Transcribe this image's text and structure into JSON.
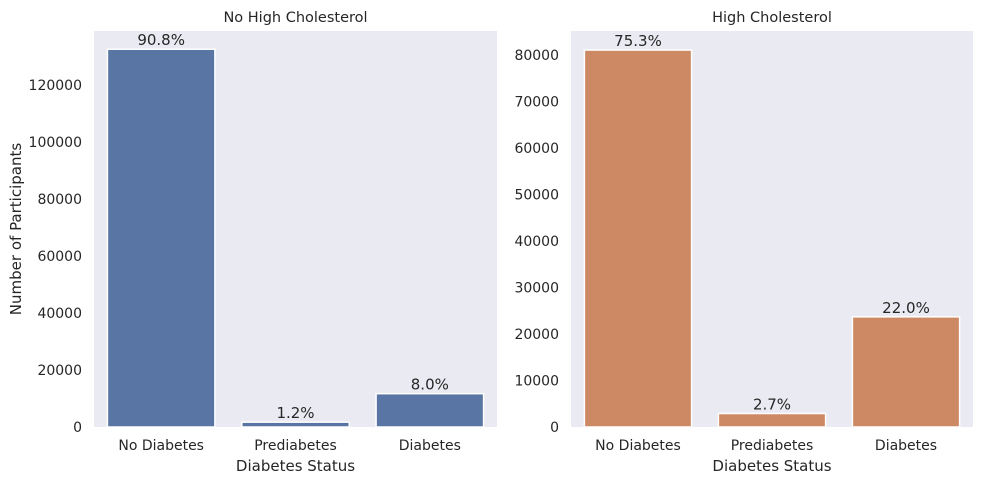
{
  "chart_data": [
    {
      "type": "bar",
      "title": "No High Cholesterol",
      "xlabel": "Diabetes Status",
      "ylabel": "Number of Participants",
      "categories": [
        "No Diabetes",
        "Prediabetes",
        "Diabetes"
      ],
      "values": [
        132600,
        1700,
        11700
      ],
      "data_labels": [
        "90.8%",
        "1.2%",
        "8.0%"
      ],
      "ylim": [
        0,
        139000
      ],
      "yticks": [
        0,
        20000,
        40000,
        60000,
        80000,
        100000,
        120000
      ],
      "color": "#5975a4",
      "grid": false
    },
    {
      "type": "bar",
      "title": "High Cholesterol",
      "xlabel": "Diabetes Status",
      "ylabel": "",
      "categories": [
        "No Diabetes",
        "Prediabetes",
        "Diabetes"
      ],
      "values": [
        81100,
        2900,
        23700
      ],
      "data_labels": [
        "75.3%",
        "2.7%",
        "22.0%"
      ],
      "ylim": [
        0,
        85200
      ],
      "yticks": [
        0,
        10000,
        20000,
        30000,
        40000,
        50000,
        60000,
        70000,
        80000
      ],
      "color": "#cc8963",
      "grid": false
    }
  ]
}
